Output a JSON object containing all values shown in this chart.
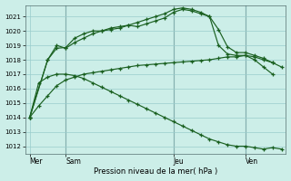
{
  "bg_color": "#cceee8",
  "grid_color": "#99cccc",
  "line_color": "#1a6020",
  "xlabel": "Pression niveau de la mer( hPa )",
  "ylim": [
    1011.5,
    1021.8
  ],
  "yticks": [
    1012,
    1013,
    1014,
    1015,
    1016,
    1017,
    1018,
    1019,
    1020,
    1021
  ],
  "xtick_labels": [
    "Mer",
    "Sam",
    "Jeu",
    "Ven"
  ],
  "xtick_positions": [
    0,
    4,
    16,
    24
  ],
  "vline_positions": [
    4,
    16,
    24
  ],
  "line1_x": [
    0,
    1,
    2,
    3,
    4,
    5,
    6,
    7,
    8,
    9,
    10,
    11,
    12,
    13,
    14,
    15,
    16,
    17,
    18,
    19,
    20,
    21,
    22,
    23,
    24,
    25,
    26,
    27
  ],
  "line1": [
    1014.0,
    1014.8,
    1015.5,
    1016.2,
    1016.6,
    1016.8,
    1017.0,
    1017.1,
    1017.2,
    1017.3,
    1017.4,
    1017.5,
    1017.6,
    1017.65,
    1017.7,
    1017.75,
    1017.8,
    1017.85,
    1017.9,
    1017.95,
    1018.0,
    1018.1,
    1018.2,
    1018.2,
    1018.3,
    1018.2,
    1018.0,
    1017.8
  ],
  "line2_x": [
    0,
    2,
    3,
    4,
    5,
    6,
    7,
    8,
    9,
    10,
    11,
    12,
    13,
    14,
    15,
    16,
    17,
    18,
    19,
    20,
    21,
    22,
    23,
    24,
    25,
    26,
    27,
    28
  ],
  "line2": [
    1014.0,
    1018.0,
    1019.0,
    1018.8,
    1019.2,
    1019.5,
    1019.8,
    1020.0,
    1020.2,
    1020.3,
    1020.4,
    1020.3,
    1020.5,
    1020.7,
    1020.9,
    1021.3,
    1021.5,
    1021.4,
    1021.2,
    1021.0,
    1020.1,
    1018.9,
    1018.5,
    1018.5,
    1018.3,
    1018.1,
    1017.8,
    1017.5
  ],
  "line3_x": [
    0,
    2,
    3,
    4,
    5,
    6,
    7,
    8,
    9,
    10,
    11,
    12,
    13,
    14,
    15,
    16,
    17,
    18,
    19,
    20,
    21,
    22,
    23,
    24,
    25,
    26,
    27
  ],
  "line3": [
    1014.0,
    1018.0,
    1018.8,
    1018.85,
    1019.5,
    1019.8,
    1020.0,
    1020.0,
    1020.1,
    1020.2,
    1020.4,
    1020.6,
    1020.8,
    1021.0,
    1021.2,
    1021.5,
    1021.6,
    1021.5,
    1021.3,
    1021.0,
    1019.0,
    1018.4,
    1018.3,
    1018.3,
    1018.0,
    1017.5,
    1017.0
  ],
  "line4_x": [
    0,
    1,
    2,
    3,
    4,
    5,
    6,
    7,
    8,
    9,
    10,
    11,
    12,
    13,
    14,
    15,
    16,
    17,
    18,
    19,
    20,
    21,
    22,
    23,
    24,
    25,
    26,
    27,
    28
  ],
  "line4": [
    1014.0,
    1016.4,
    1016.8,
    1017.0,
    1017.0,
    1016.9,
    1016.7,
    1016.4,
    1016.1,
    1015.8,
    1015.5,
    1015.2,
    1014.9,
    1014.6,
    1014.3,
    1014.0,
    1013.7,
    1013.4,
    1013.1,
    1012.8,
    1012.5,
    1012.3,
    1012.1,
    1012.0,
    1012.0,
    1011.9,
    1011.8,
    1011.9,
    1011.8
  ],
  "xlim": [
    -0.5,
    28.5
  ],
  "num_x": 29
}
